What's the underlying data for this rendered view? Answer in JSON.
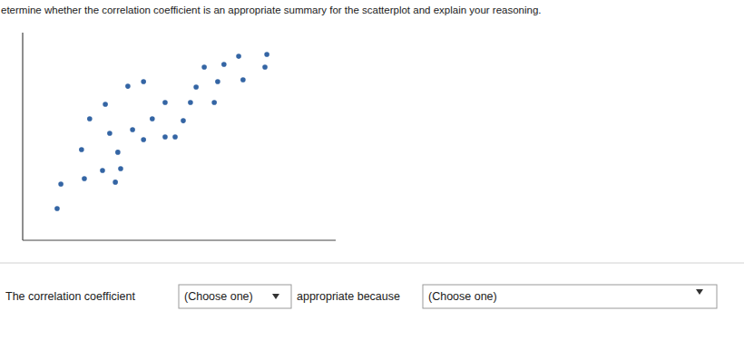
{
  "question": "etermine whether the correlation coefficient is an appropriate summary for the scatterplot and explain your reasoning.",
  "chart_data": {
    "type": "scatter",
    "color": "#3465a4",
    "marker": "circle",
    "tick_labels": false,
    "grid": false,
    "xlim": [
      0,
      100
    ],
    "ylim": [
      0,
      100
    ],
    "xticks": [],
    "yticks": [],
    "x": [
      11.0,
      12.2,
      19.7,
      25.5,
      29.6,
      31.3,
      18.8,
      30.4,
      21.4,
      27.8,
      35.1,
      38.6,
      41.4,
      45.5,
      48.7,
      51.3,
      26.4,
      33.6,
      38.6,
      45.5,
      53.6,
      55.4,
      61.2,
      62.3,
      58.0,
      64.3,
      69.0,
      70.4,
      77.4,
      78.0
    ],
    "values": [
      15.3,
      27.1,
      29.7,
      33.6,
      28.0,
      34.5,
      43.7,
      42.4,
      58.5,
      51.5,
      53.3,
      48.5,
      58.5,
      49.8,
      49.8,
      57.6,
      65.5,
      74.2,
      76.4,
      66.4,
      66.4,
      73.8,
      66.4,
      76.4,
      83.4,
      84.7,
      88.6,
      77.3,
      83.4,
      89.5
    ]
  },
  "answer_row": {
    "lead": "The correlation coefficient",
    "select_1": "(Choose one)",
    "middle": "appropriate because",
    "select_2": "(Choose one)"
  }
}
